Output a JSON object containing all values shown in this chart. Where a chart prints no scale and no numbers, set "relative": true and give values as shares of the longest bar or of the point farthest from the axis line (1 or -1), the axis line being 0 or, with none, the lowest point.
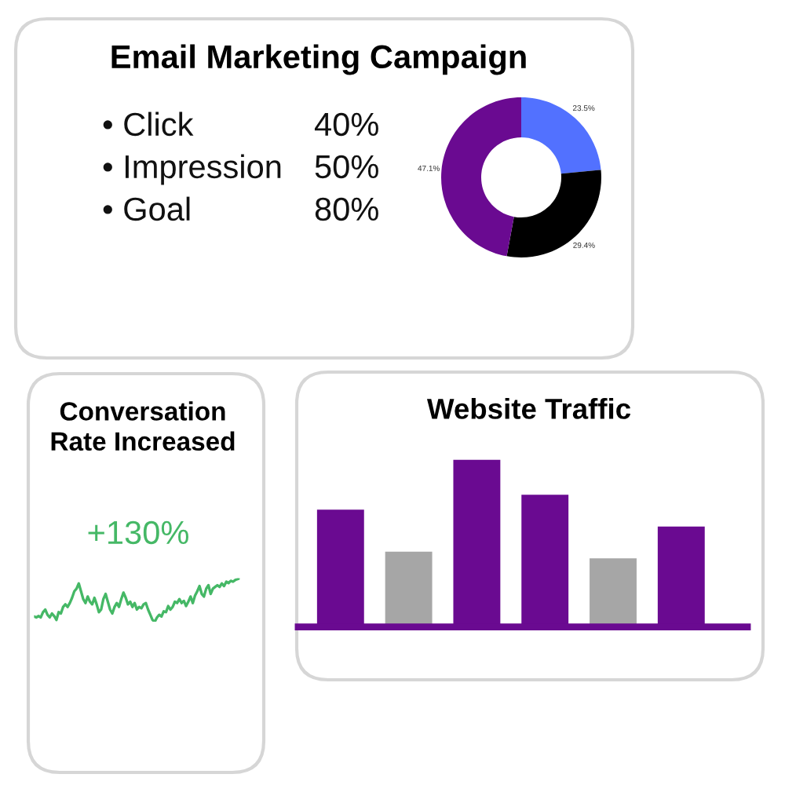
{
  "chart_data": [
    {
      "type": "donut",
      "title": "Email Marketing Campaign",
      "categories": [
        null,
        null,
        null
      ],
      "values": [
        23.5,
        29.4,
        47.1
      ],
      "colors": [
        "#5271ff",
        "#000000",
        "#6a0a91"
      ],
      "value_labels": [
        "23.5%",
        "29.4%",
        "47.1%"
      ],
      "annotations": [
        "• Click",
        "40%",
        "• Impression",
        "50%",
        "• Goal",
        "80%"
      ]
    },
    {
      "type": "line",
      "title": "Conversation\nRate Increased",
      "relative": true,
      "tick_labels": false,
      "annotations": [
        "+130%"
      ],
      "categories": [
        null,
        null,
        null,
        null,
        null,
        null,
        null,
        null,
        null,
        null,
        null,
        null,
        null,
        null,
        null,
        null,
        null,
        null,
        null,
        null,
        null,
        null,
        null,
        null,
        null,
        null,
        null,
        null,
        null,
        null,
        null,
        null,
        null,
        null,
        null,
        null,
        null,
        null,
        null,
        null,
        null,
        null,
        null,
        null,
        null,
        null,
        null,
        null,
        null,
        null,
        null,
        null,
        null,
        null,
        null,
        null,
        null,
        null,
        null,
        null,
        null,
        null,
        null,
        null,
        null,
        null,
        null,
        null,
        null,
        null,
        null,
        null,
        null,
        null,
        null,
        null,
        null,
        null,
        null,
        null,
        null,
        null,
        null,
        null,
        null,
        null,
        null,
        null,
        null,
        null,
        null,
        null,
        null
      ],
      "series": [
        {
          "color": "#45b866",
          "values": [
            0.12,
            0.1,
            0.13,
            0.1,
            0.22,
            0.28,
            0.16,
            0.1,
            0.19,
            0.13,
            0.04,
            0.22,
            0.19,
            0.34,
            0.4,
            0.34,
            0.43,
            0.55,
            0.7,
            0.76,
            0.88,
            0.7,
            0.52,
            0.43,
            0.58,
            0.46,
            0.4,
            0.55,
            0.4,
            0.22,
            0.28,
            0.52,
            0.64,
            0.46,
            0.28,
            0.19,
            0.34,
            0.43,
            0.34,
            0.52,
            0.67,
            0.55,
            0.4,
            0.46,
            0.34,
            0.43,
            0.28,
            0.34,
            0.31,
            0.4,
            0.43,
            0.28,
            0.16,
            0.04,
            0.0,
            0.1,
            0.16,
            0.12,
            0.24,
            0.22,
            0.36,
            0.28,
            0.34,
            0.46,
            0.43,
            0.52,
            0.43,
            0.48,
            0.36,
            0.46,
            0.58,
            0.43,
            0.6,
            0.7,
            0.82,
            0.64,
            0.58,
            0.76,
            0.84,
            0.64,
            0.76,
            0.8,
            0.84,
            0.8,
            0.88,
            0.82,
            0.92,
            0.89,
            0.94,
            0.92,
            0.96,
            0.98,
            1.0
          ]
        }
      ]
    },
    {
      "type": "bar",
      "title": "Website Traffic",
      "relative": true,
      "tick_labels": false,
      "categories": [
        null,
        null,
        null,
        null,
        null,
        null
      ],
      "values": [
        0.7,
        0.45,
        1.0,
        0.79,
        0.41,
        0.6
      ],
      "colors": [
        "#6a0a91",
        "#a6a6a6",
        "#6a0a91",
        "#6a0a91",
        "#a6a6a6",
        "#6a0a91"
      ]
    }
  ]
}
